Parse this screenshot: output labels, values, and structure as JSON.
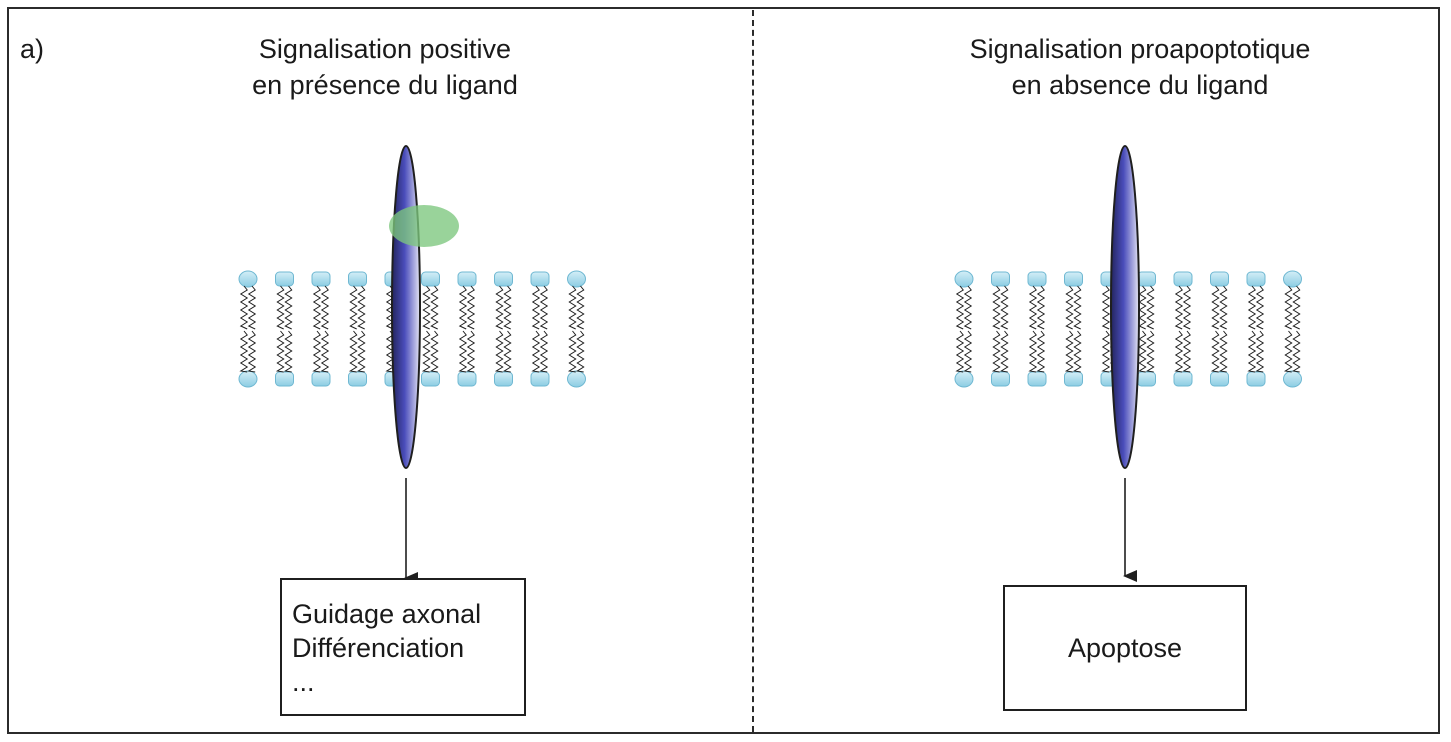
{
  "panel_label": "a)",
  "left_panel": {
    "title_line1": "Signalisation positive",
    "title_line2": "en présence du ligand",
    "outcome_lines": [
      "Guidage axonal",
      "Différenciation",
      "..."
    ]
  },
  "right_panel": {
    "title_line1": "Signalisation proapoptotique",
    "title_line2": "en absence du ligand",
    "outcome": "Apoptose"
  },
  "colors": {
    "receptor": "#3b3d9a",
    "ligand": "#7cc77e",
    "lipid_head": "#9fd6ea",
    "outline": "#1f1f1f"
  }
}
